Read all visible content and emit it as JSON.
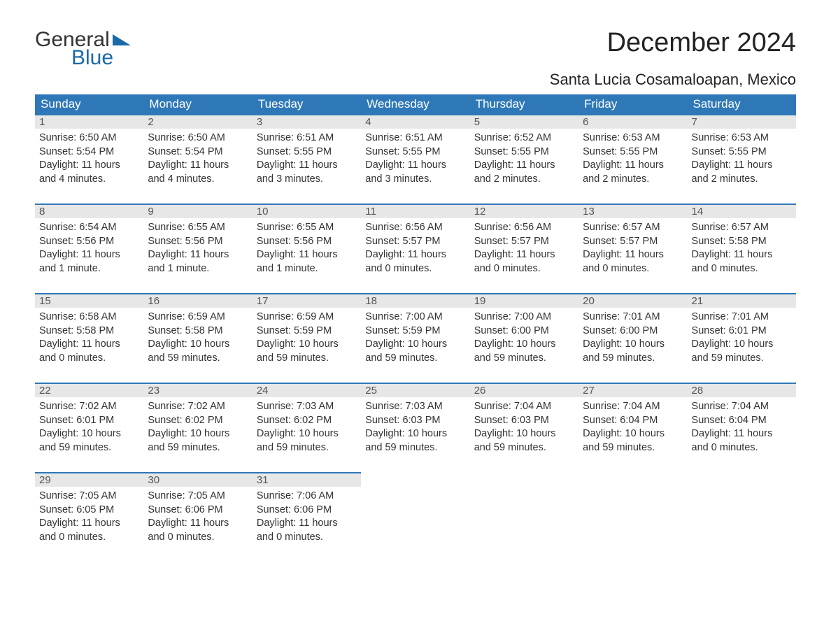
{
  "logo": {
    "line1": "General",
    "line2": "Blue",
    "tri_color": "#1a6aa8"
  },
  "title": "December 2024",
  "location": "Santa Lucia Cosamaloapan, Mexico",
  "colors": {
    "header_bg": "#2f78b7",
    "header_text": "#ffffff",
    "daynum_bg": "#e7e7e7",
    "week_border": "#2f78b7",
    "body_text": "#333333",
    "page_bg": "#ffffff"
  },
  "day_headers": [
    "Sunday",
    "Monday",
    "Tuesday",
    "Wednesday",
    "Thursday",
    "Friday",
    "Saturday"
  ],
  "weeks": [
    [
      {
        "n": "1",
        "sunrise": "Sunrise: 6:50 AM",
        "sunset": "Sunset: 5:54 PM",
        "day1": "Daylight: 11 hours",
        "day2": "and 4 minutes."
      },
      {
        "n": "2",
        "sunrise": "Sunrise: 6:50 AM",
        "sunset": "Sunset: 5:54 PM",
        "day1": "Daylight: 11 hours",
        "day2": "and 4 minutes."
      },
      {
        "n": "3",
        "sunrise": "Sunrise: 6:51 AM",
        "sunset": "Sunset: 5:55 PM",
        "day1": "Daylight: 11 hours",
        "day2": "and 3 minutes."
      },
      {
        "n": "4",
        "sunrise": "Sunrise: 6:51 AM",
        "sunset": "Sunset: 5:55 PM",
        "day1": "Daylight: 11 hours",
        "day2": "and 3 minutes."
      },
      {
        "n": "5",
        "sunrise": "Sunrise: 6:52 AM",
        "sunset": "Sunset: 5:55 PM",
        "day1": "Daylight: 11 hours",
        "day2": "and 2 minutes."
      },
      {
        "n": "6",
        "sunrise": "Sunrise: 6:53 AM",
        "sunset": "Sunset: 5:55 PM",
        "day1": "Daylight: 11 hours",
        "day2": "and 2 minutes."
      },
      {
        "n": "7",
        "sunrise": "Sunrise: 6:53 AM",
        "sunset": "Sunset: 5:55 PM",
        "day1": "Daylight: 11 hours",
        "day2": "and 2 minutes."
      }
    ],
    [
      {
        "n": "8",
        "sunrise": "Sunrise: 6:54 AM",
        "sunset": "Sunset: 5:56 PM",
        "day1": "Daylight: 11 hours",
        "day2": "and 1 minute."
      },
      {
        "n": "9",
        "sunrise": "Sunrise: 6:55 AM",
        "sunset": "Sunset: 5:56 PM",
        "day1": "Daylight: 11 hours",
        "day2": "and 1 minute."
      },
      {
        "n": "10",
        "sunrise": "Sunrise: 6:55 AM",
        "sunset": "Sunset: 5:56 PM",
        "day1": "Daylight: 11 hours",
        "day2": "and 1 minute."
      },
      {
        "n": "11",
        "sunrise": "Sunrise: 6:56 AM",
        "sunset": "Sunset: 5:57 PM",
        "day1": "Daylight: 11 hours",
        "day2": "and 0 minutes."
      },
      {
        "n": "12",
        "sunrise": "Sunrise: 6:56 AM",
        "sunset": "Sunset: 5:57 PM",
        "day1": "Daylight: 11 hours",
        "day2": "and 0 minutes."
      },
      {
        "n": "13",
        "sunrise": "Sunrise: 6:57 AM",
        "sunset": "Sunset: 5:57 PM",
        "day1": "Daylight: 11 hours",
        "day2": "and 0 minutes."
      },
      {
        "n": "14",
        "sunrise": "Sunrise: 6:57 AM",
        "sunset": "Sunset: 5:58 PM",
        "day1": "Daylight: 11 hours",
        "day2": "and 0 minutes."
      }
    ],
    [
      {
        "n": "15",
        "sunrise": "Sunrise: 6:58 AM",
        "sunset": "Sunset: 5:58 PM",
        "day1": "Daylight: 11 hours",
        "day2": "and 0 minutes."
      },
      {
        "n": "16",
        "sunrise": "Sunrise: 6:59 AM",
        "sunset": "Sunset: 5:58 PM",
        "day1": "Daylight: 10 hours",
        "day2": "and 59 minutes."
      },
      {
        "n": "17",
        "sunrise": "Sunrise: 6:59 AM",
        "sunset": "Sunset: 5:59 PM",
        "day1": "Daylight: 10 hours",
        "day2": "and 59 minutes."
      },
      {
        "n": "18",
        "sunrise": "Sunrise: 7:00 AM",
        "sunset": "Sunset: 5:59 PM",
        "day1": "Daylight: 10 hours",
        "day2": "and 59 minutes."
      },
      {
        "n": "19",
        "sunrise": "Sunrise: 7:00 AM",
        "sunset": "Sunset: 6:00 PM",
        "day1": "Daylight: 10 hours",
        "day2": "and 59 minutes."
      },
      {
        "n": "20",
        "sunrise": "Sunrise: 7:01 AM",
        "sunset": "Sunset: 6:00 PM",
        "day1": "Daylight: 10 hours",
        "day2": "and 59 minutes."
      },
      {
        "n": "21",
        "sunrise": "Sunrise: 7:01 AM",
        "sunset": "Sunset: 6:01 PM",
        "day1": "Daylight: 10 hours",
        "day2": "and 59 minutes."
      }
    ],
    [
      {
        "n": "22",
        "sunrise": "Sunrise: 7:02 AM",
        "sunset": "Sunset: 6:01 PM",
        "day1": "Daylight: 10 hours",
        "day2": "and 59 minutes."
      },
      {
        "n": "23",
        "sunrise": "Sunrise: 7:02 AM",
        "sunset": "Sunset: 6:02 PM",
        "day1": "Daylight: 10 hours",
        "day2": "and 59 minutes."
      },
      {
        "n": "24",
        "sunrise": "Sunrise: 7:03 AM",
        "sunset": "Sunset: 6:02 PM",
        "day1": "Daylight: 10 hours",
        "day2": "and 59 minutes."
      },
      {
        "n": "25",
        "sunrise": "Sunrise: 7:03 AM",
        "sunset": "Sunset: 6:03 PM",
        "day1": "Daylight: 10 hours",
        "day2": "and 59 minutes."
      },
      {
        "n": "26",
        "sunrise": "Sunrise: 7:04 AM",
        "sunset": "Sunset: 6:03 PM",
        "day1": "Daylight: 10 hours",
        "day2": "and 59 minutes."
      },
      {
        "n": "27",
        "sunrise": "Sunrise: 7:04 AM",
        "sunset": "Sunset: 6:04 PM",
        "day1": "Daylight: 10 hours",
        "day2": "and 59 minutes."
      },
      {
        "n": "28",
        "sunrise": "Sunrise: 7:04 AM",
        "sunset": "Sunset: 6:04 PM",
        "day1": "Daylight: 11 hours",
        "day2": "and 0 minutes."
      }
    ],
    [
      {
        "n": "29",
        "sunrise": "Sunrise: 7:05 AM",
        "sunset": "Sunset: 6:05 PM",
        "day1": "Daylight: 11 hours",
        "day2": "and 0 minutes."
      },
      {
        "n": "30",
        "sunrise": "Sunrise: 7:05 AM",
        "sunset": "Sunset: 6:06 PM",
        "day1": "Daylight: 11 hours",
        "day2": "and 0 minutes."
      },
      {
        "n": "31",
        "sunrise": "Sunrise: 7:06 AM",
        "sunset": "Sunset: 6:06 PM",
        "day1": "Daylight: 11 hours",
        "day2": "and 0 minutes."
      },
      null,
      null,
      null,
      null
    ]
  ]
}
